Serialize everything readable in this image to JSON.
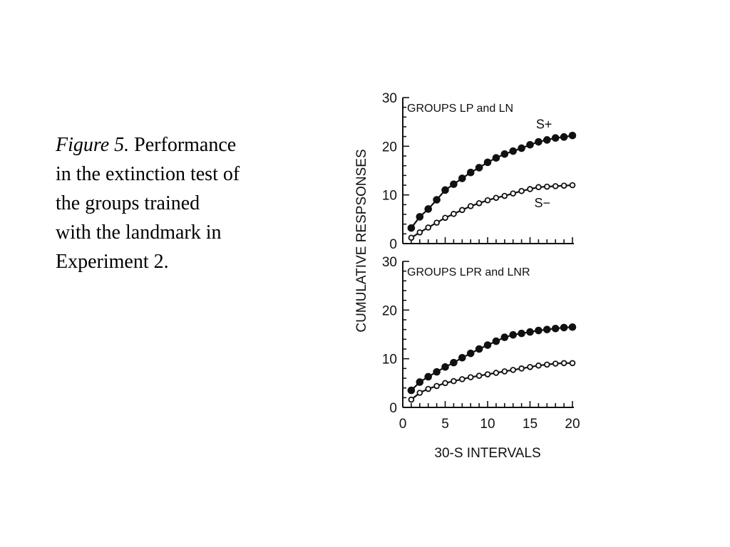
{
  "caption": {
    "label": "Figure 5.",
    "lines": [
      "Performance",
      "in the extinction test of",
      "the groups trained",
      "with the landmark in",
      "Experiment 2."
    ]
  },
  "chart_data": {
    "type": "line",
    "ylabel": "CUMULATIVE RESPSONSES",
    "xlabel": "30-S INTERVALS",
    "x": [
      1,
      2,
      3,
      4,
      5,
      6,
      7,
      8,
      9,
      10,
      11,
      12,
      13,
      14,
      15,
      16,
      17,
      18,
      19,
      20
    ],
    "xlim": [
      0,
      20
    ],
    "xticks": [
      0,
      5,
      10,
      15,
      20
    ],
    "ylim": [
      0,
      30
    ],
    "yticks": [
      0,
      10,
      20,
      30
    ],
    "panels": [
      {
        "title": "GROUPS LP and LN",
        "series": [
          {
            "name": "S+",
            "marker": "filled",
            "values": [
              3.2,
              5.5,
              7.1,
              9.0,
              11.0,
              12.2,
              13.4,
              14.6,
              15.6,
              16.7,
              17.6,
              18.4,
              19.0,
              19.6,
              20.3,
              20.9,
              21.3,
              21.7,
              21.9,
              22.2
            ]
          },
          {
            "name": "S−",
            "marker": "open",
            "values": [
              1.2,
              2.3,
              3.3,
              4.3,
              5.3,
              6.1,
              6.9,
              7.7,
              8.3,
              8.9,
              9.4,
              9.8,
              10.3,
              10.8,
              11.2,
              11.6,
              11.7,
              11.8,
              11.9,
              12.0
            ]
          }
        ]
      },
      {
        "title": "GROUPS LPR and LNR",
        "series": [
          {
            "marker": "filled",
            "values": [
              3.5,
              5.2,
              6.3,
              7.3,
              8.3,
              9.2,
              10.2,
              11.1,
              12.0,
              12.8,
              13.6,
              14.4,
              14.9,
              15.2,
              15.5,
              15.8,
              16.0,
              16.2,
              16.4,
              16.5
            ]
          },
          {
            "marker": "open",
            "values": [
              1.6,
              3.0,
              3.8,
              4.4,
              5.0,
              5.4,
              5.8,
              6.2,
              6.5,
              6.8,
              7.1,
              7.4,
              7.7,
              8.0,
              8.3,
              8.6,
              8.8,
              9.0,
              9.1,
              9.1
            ]
          }
        ]
      }
    ]
  }
}
